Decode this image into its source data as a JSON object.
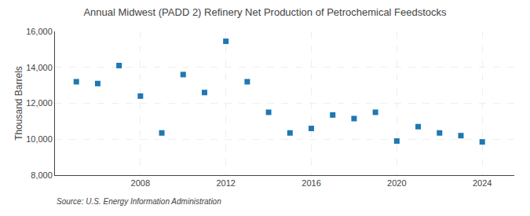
{
  "chart_data": {
    "type": "scatter",
    "title": "Annual Midwest (PADD 2) Refinery Net Production of Petrochemical Feedstocks",
    "ylabel": "Thousand Barrels",
    "annotations": [
      "Source: U.S. Energy Information Administration"
    ],
    "marker": "square",
    "x": [
      2005,
      2006,
      2007,
      2008,
      2009,
      2010,
      2011,
      2012,
      2013,
      2014,
      2015,
      2016,
      2017,
      2018,
      2019,
      2020,
      2021,
      2022,
      2023,
      2024
    ],
    "values": [
      13200,
      13100,
      14100,
      12400,
      10350,
      13600,
      12600,
      15450,
      13200,
      11500,
      10350,
      10600,
      11350,
      11150,
      11500,
      9900,
      10700,
      10350,
      10200,
      9850
    ],
    "xlim": [
      2004.0,
      2025.5
    ],
    "xticks": [
      2008,
      2012,
      2016,
      2020,
      2024
    ],
    "ylim": [
      8000,
      16000
    ],
    "yticks": [
      {
        "value": 8000,
        "label": "8,000"
      },
      {
        "value": 10000,
        "label": "10,000"
      },
      {
        "value": 12000,
        "label": "12,000"
      },
      {
        "value": 14000,
        "label": "14,000"
      },
      {
        "value": 16000,
        "label": "16,000"
      }
    ],
    "grid": true
  }
}
